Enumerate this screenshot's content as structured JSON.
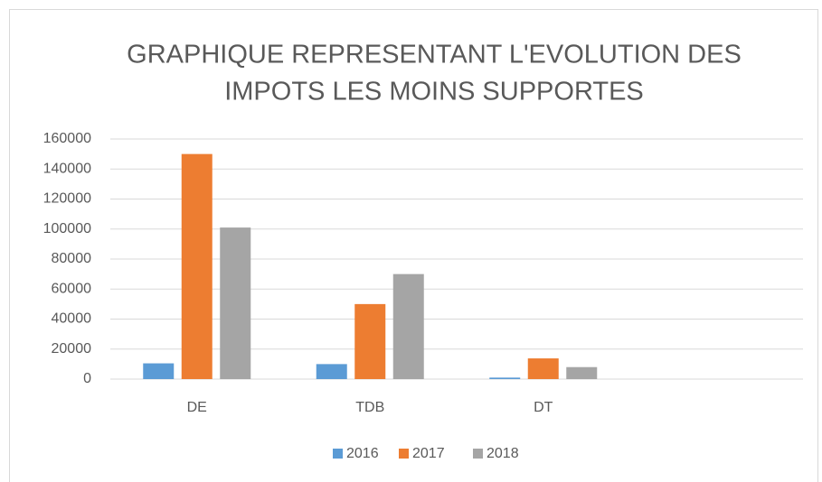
{
  "chart_data": {
    "type": "bar",
    "title": [
      "GRAPHIQUE REPRESENTANT L'EVOLUTION DES",
      "IMPOTS LES MOINS SUPPORTES"
    ],
    "categories": [
      "DE",
      "TDB",
      "DT",
      null
    ],
    "series": [
      {
        "name": "2016",
        "color": "#5b9bd5",
        "values": [
          10500,
          10000,
          1000,
          null
        ]
      },
      {
        "name": "2017",
        "color": "#ed7d31",
        "values": [
          150000,
          50000,
          13800,
          null
        ]
      },
      {
        "name": "2018",
        "color": "#a5a5a5",
        "values": [
          101000,
          70000,
          8000,
          null
        ]
      }
    ],
    "ylim": [
      0,
      160000
    ],
    "yticks": [
      0,
      20000,
      40000,
      60000,
      80000,
      100000,
      120000,
      140000,
      160000
    ],
    "grid": true,
    "legend": "bottom"
  }
}
